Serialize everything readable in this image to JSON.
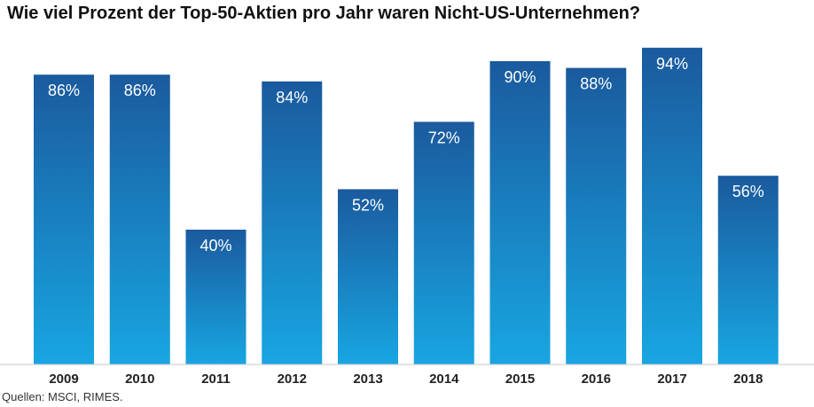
{
  "chart_data": {
    "type": "bar",
    "title": "Wie viel Prozent der Top-50-Aktien pro Jahr waren Nicht-US-Unternehmen?",
    "xlabel": "",
    "ylabel": "",
    "categories": [
      "2009",
      "2010",
      "2011",
      "2012",
      "2013",
      "2014",
      "2015",
      "2016",
      "2017",
      "2018"
    ],
    "values": [
      86,
      86,
      40,
      84,
      52,
      72,
      90,
      88,
      94,
      56
    ],
    "value_labels": [
      "86%",
      "86%",
      "40%",
      "84%",
      "52%",
      "72%",
      "90%",
      "88%",
      "94%",
      "56%"
    ],
    "ylim": [
      0,
      100
    ],
    "grid": false,
    "colors": {
      "bar_top": "#1a5a9e",
      "bar_bottom": "#18a6e2",
      "label_text": "#ffffff",
      "axis": "#c8c8c8"
    }
  },
  "footer": {
    "source": "Quellen: MSCI, RIMES."
  }
}
